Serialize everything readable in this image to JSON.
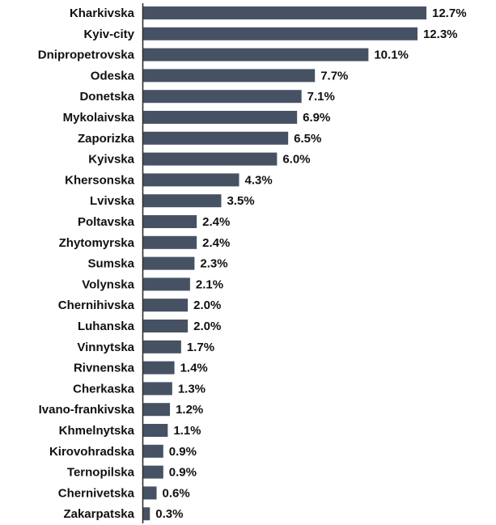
{
  "chart_data": {
    "type": "bar",
    "orientation": "horizontal",
    "color": "#465264",
    "categories": [
      "Kharkivska",
      "Kyiv-city",
      "Dnipropetrovska",
      "Odeska",
      "Donetska",
      "Mykolaivska",
      "Zaporizka",
      "Kyivska",
      "Khersonska",
      "Lvivska",
      "Poltavska",
      "Zhytomyrska",
      "Sumska",
      "Volynska",
      "Chernihivska",
      "Luhanska",
      "Vinnytska",
      "Rivnenska",
      "Cherkaska",
      "Ivano-frankivska",
      "Khmelnytska",
      "Kirovohradska",
      "Ternopilska",
      "Chernivetska",
      "Zakarpatska"
    ],
    "values": [
      12.7,
      12.3,
      10.1,
      7.7,
      7.1,
      6.9,
      6.5,
      6.0,
      4.3,
      3.5,
      2.4,
      2.4,
      2.3,
      2.1,
      2.0,
      2.0,
      1.7,
      1.4,
      1.3,
      1.2,
      1.1,
      0.9,
      0.9,
      0.6,
      0.3
    ],
    "value_labels": [
      "12.7%",
      "12.3%",
      "10.1%",
      "7.7%",
      "7.1%",
      "6.9%",
      "6.5%",
      "6.0%",
      "4.3%",
      "3.5%",
      "2.4%",
      "2.4%",
      "2.3%",
      "2.1%",
      "2.0%",
      "2.0%",
      "1.7%",
      "1.4%",
      "1.3%",
      "1.2%",
      "1.1%",
      "0.9%",
      "0.9%",
      "0.6%",
      "0.3%"
    ]
  }
}
